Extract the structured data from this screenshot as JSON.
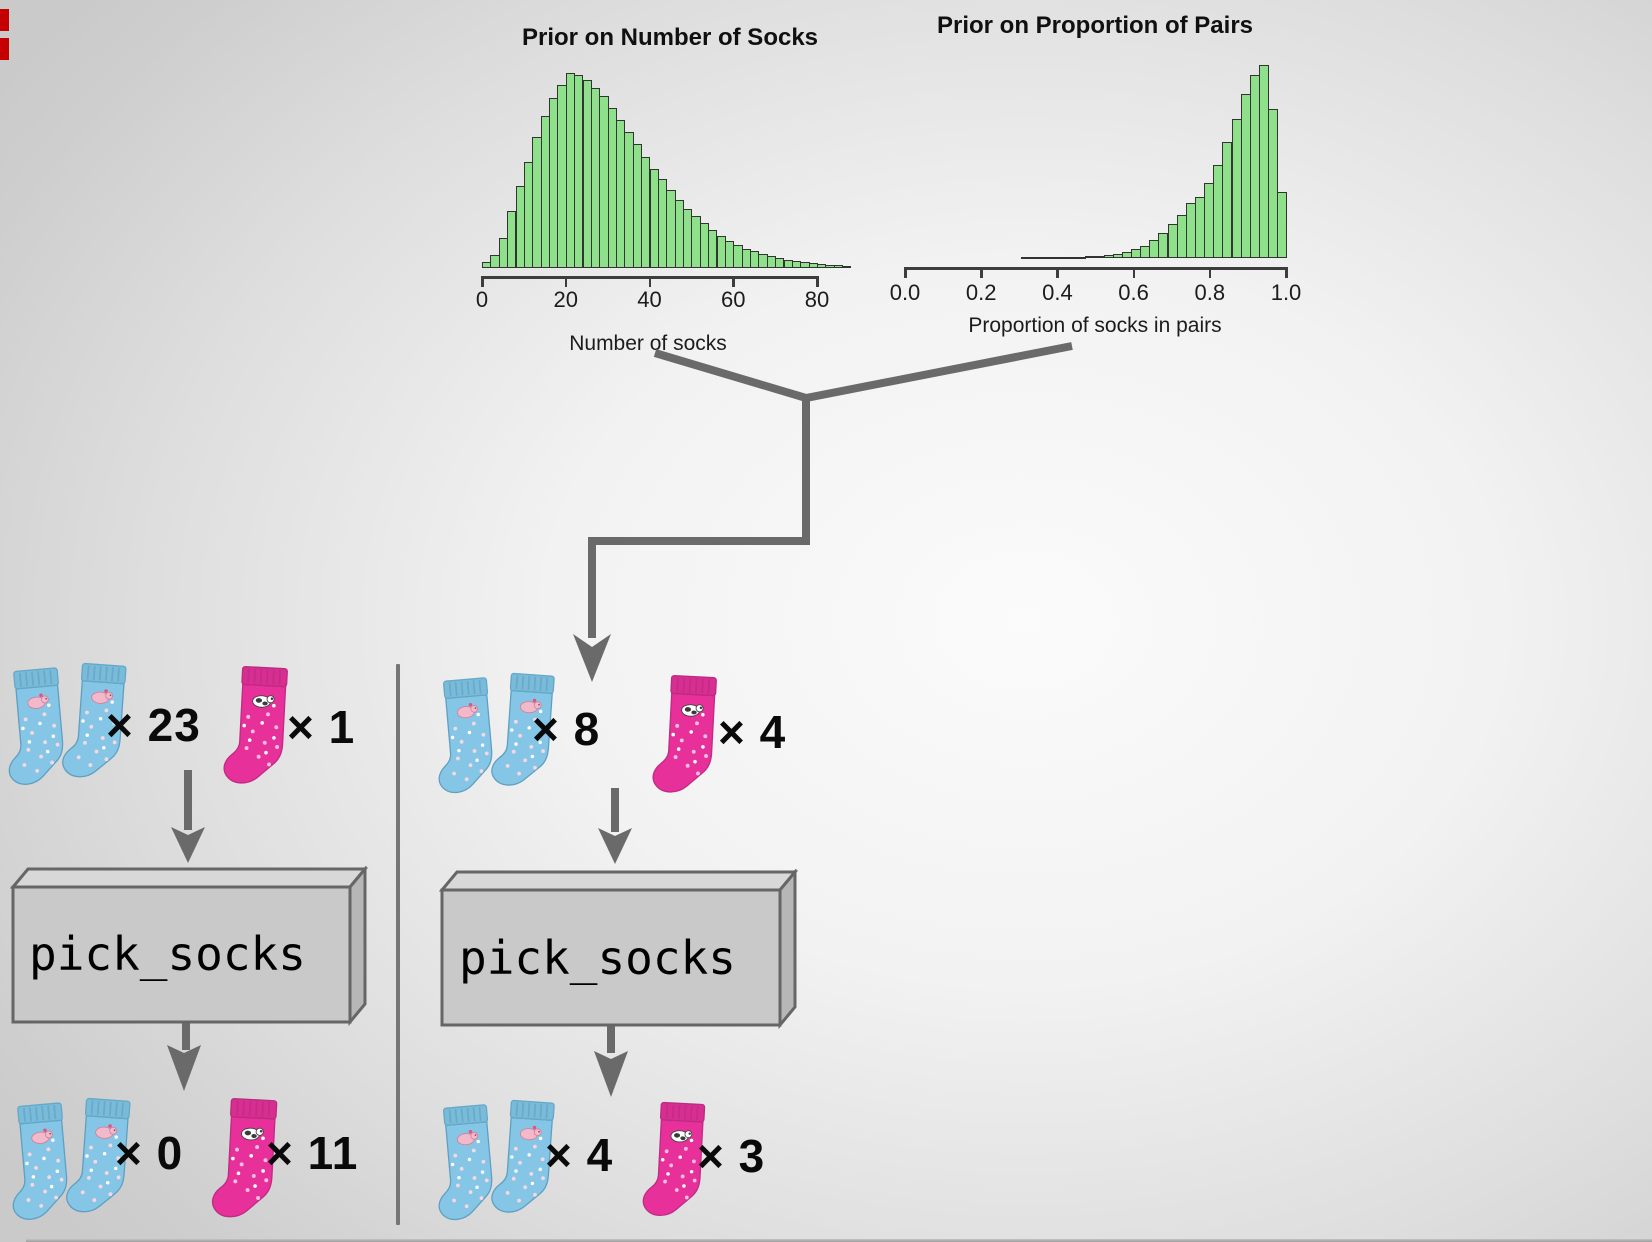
{
  "chart_data": [
    {
      "id": "socks",
      "type": "bar",
      "title": "Prior on Number of Socks",
      "xlabel": "Number of socks",
      "x_ticks": [
        "0",
        "20",
        "40",
        "60",
        "80"
      ],
      "x_tick_values": [
        0,
        20,
        40,
        60,
        80
      ],
      "axis_range": [
        0,
        80
      ],
      "bin_start": 0,
      "bin_width": 2,
      "ylabel": "",
      "y_axis_shown": false,
      "legend": "none",
      "grid": false,
      "bar_fill": "#8ee08a",
      "bar_stroke": "#333333",
      "rel_heights": [
        0.03,
        0.065,
        0.155,
        0.29,
        0.42,
        0.545,
        0.67,
        0.78,
        0.87,
        0.94,
        1.0,
        0.99,
        0.965,
        0.925,
        0.88,
        0.82,
        0.76,
        0.7,
        0.635,
        0.57,
        0.51,
        0.455,
        0.4,
        0.35,
        0.305,
        0.265,
        0.23,
        0.195,
        0.165,
        0.14,
        0.12,
        0.1,
        0.085,
        0.07,
        0.06,
        0.05,
        0.042,
        0.036,
        0.03,
        0.026,
        0.022,
        0.018,
        0.014,
        0.012
      ]
    },
    {
      "id": "pairs",
      "type": "bar",
      "title": "Prior on Proportion of Pairs",
      "xlabel": "Proportion of socks in pairs",
      "x_ticks": [
        "0.0",
        "0.2",
        "0.4",
        "0.6",
        "0.8",
        "1.0"
      ],
      "x_tick_values": [
        0,
        0.2,
        0.4,
        0.6,
        0.8,
        1.0
      ],
      "axis_range": [
        0,
        1
      ],
      "bin_start": 0.305,
      "bin_width": 0.024,
      "ylabel": "",
      "y_axis_shown": false,
      "legend": "none",
      "grid": false,
      "bar_fill": "#8ee08a",
      "bar_stroke": "#333333",
      "rel_heights": [
        0.004,
        0.004,
        0.005,
        0.005,
        0.006,
        0.007,
        0.008,
        0.01,
        0.012,
        0.016,
        0.022,
        0.032,
        0.048,
        0.065,
        0.095,
        0.13,
        0.175,
        0.225,
        0.285,
        0.315,
        0.39,
        0.48,
        0.6,
        0.72,
        0.85,
        0.95,
        1.0,
        0.77,
        0.34
      ]
    }
  ],
  "flow": {
    "pick_box_label": "pick_socks",
    "left_trial": {
      "pair_count": "× 23",
      "single_count": "× 1",
      "result_pair_count": "× 0",
      "result_single_count": "× 11"
    },
    "right_trial": {
      "pair_count": "× 8",
      "single_count": "× 4",
      "result_pair_count": "× 4",
      "result_single_count": "× 3"
    }
  },
  "icons": {
    "pair_icon": "blue-sock-pair",
    "single_icon": "pink-sock"
  },
  "colors": {
    "arrow": "#6a6a6a",
    "divider": "#767676",
    "box_front": "#c9c9c9",
    "box_top": "#d8d8d8",
    "box_side": "#b7b7b7",
    "box_border": "#666666",
    "bar_fill": "#8ee08a",
    "bar_stroke": "#333333",
    "blue_sock": "#85c6e6",
    "pink_sock": "#e8309b",
    "red_mark": "#c40000"
  }
}
